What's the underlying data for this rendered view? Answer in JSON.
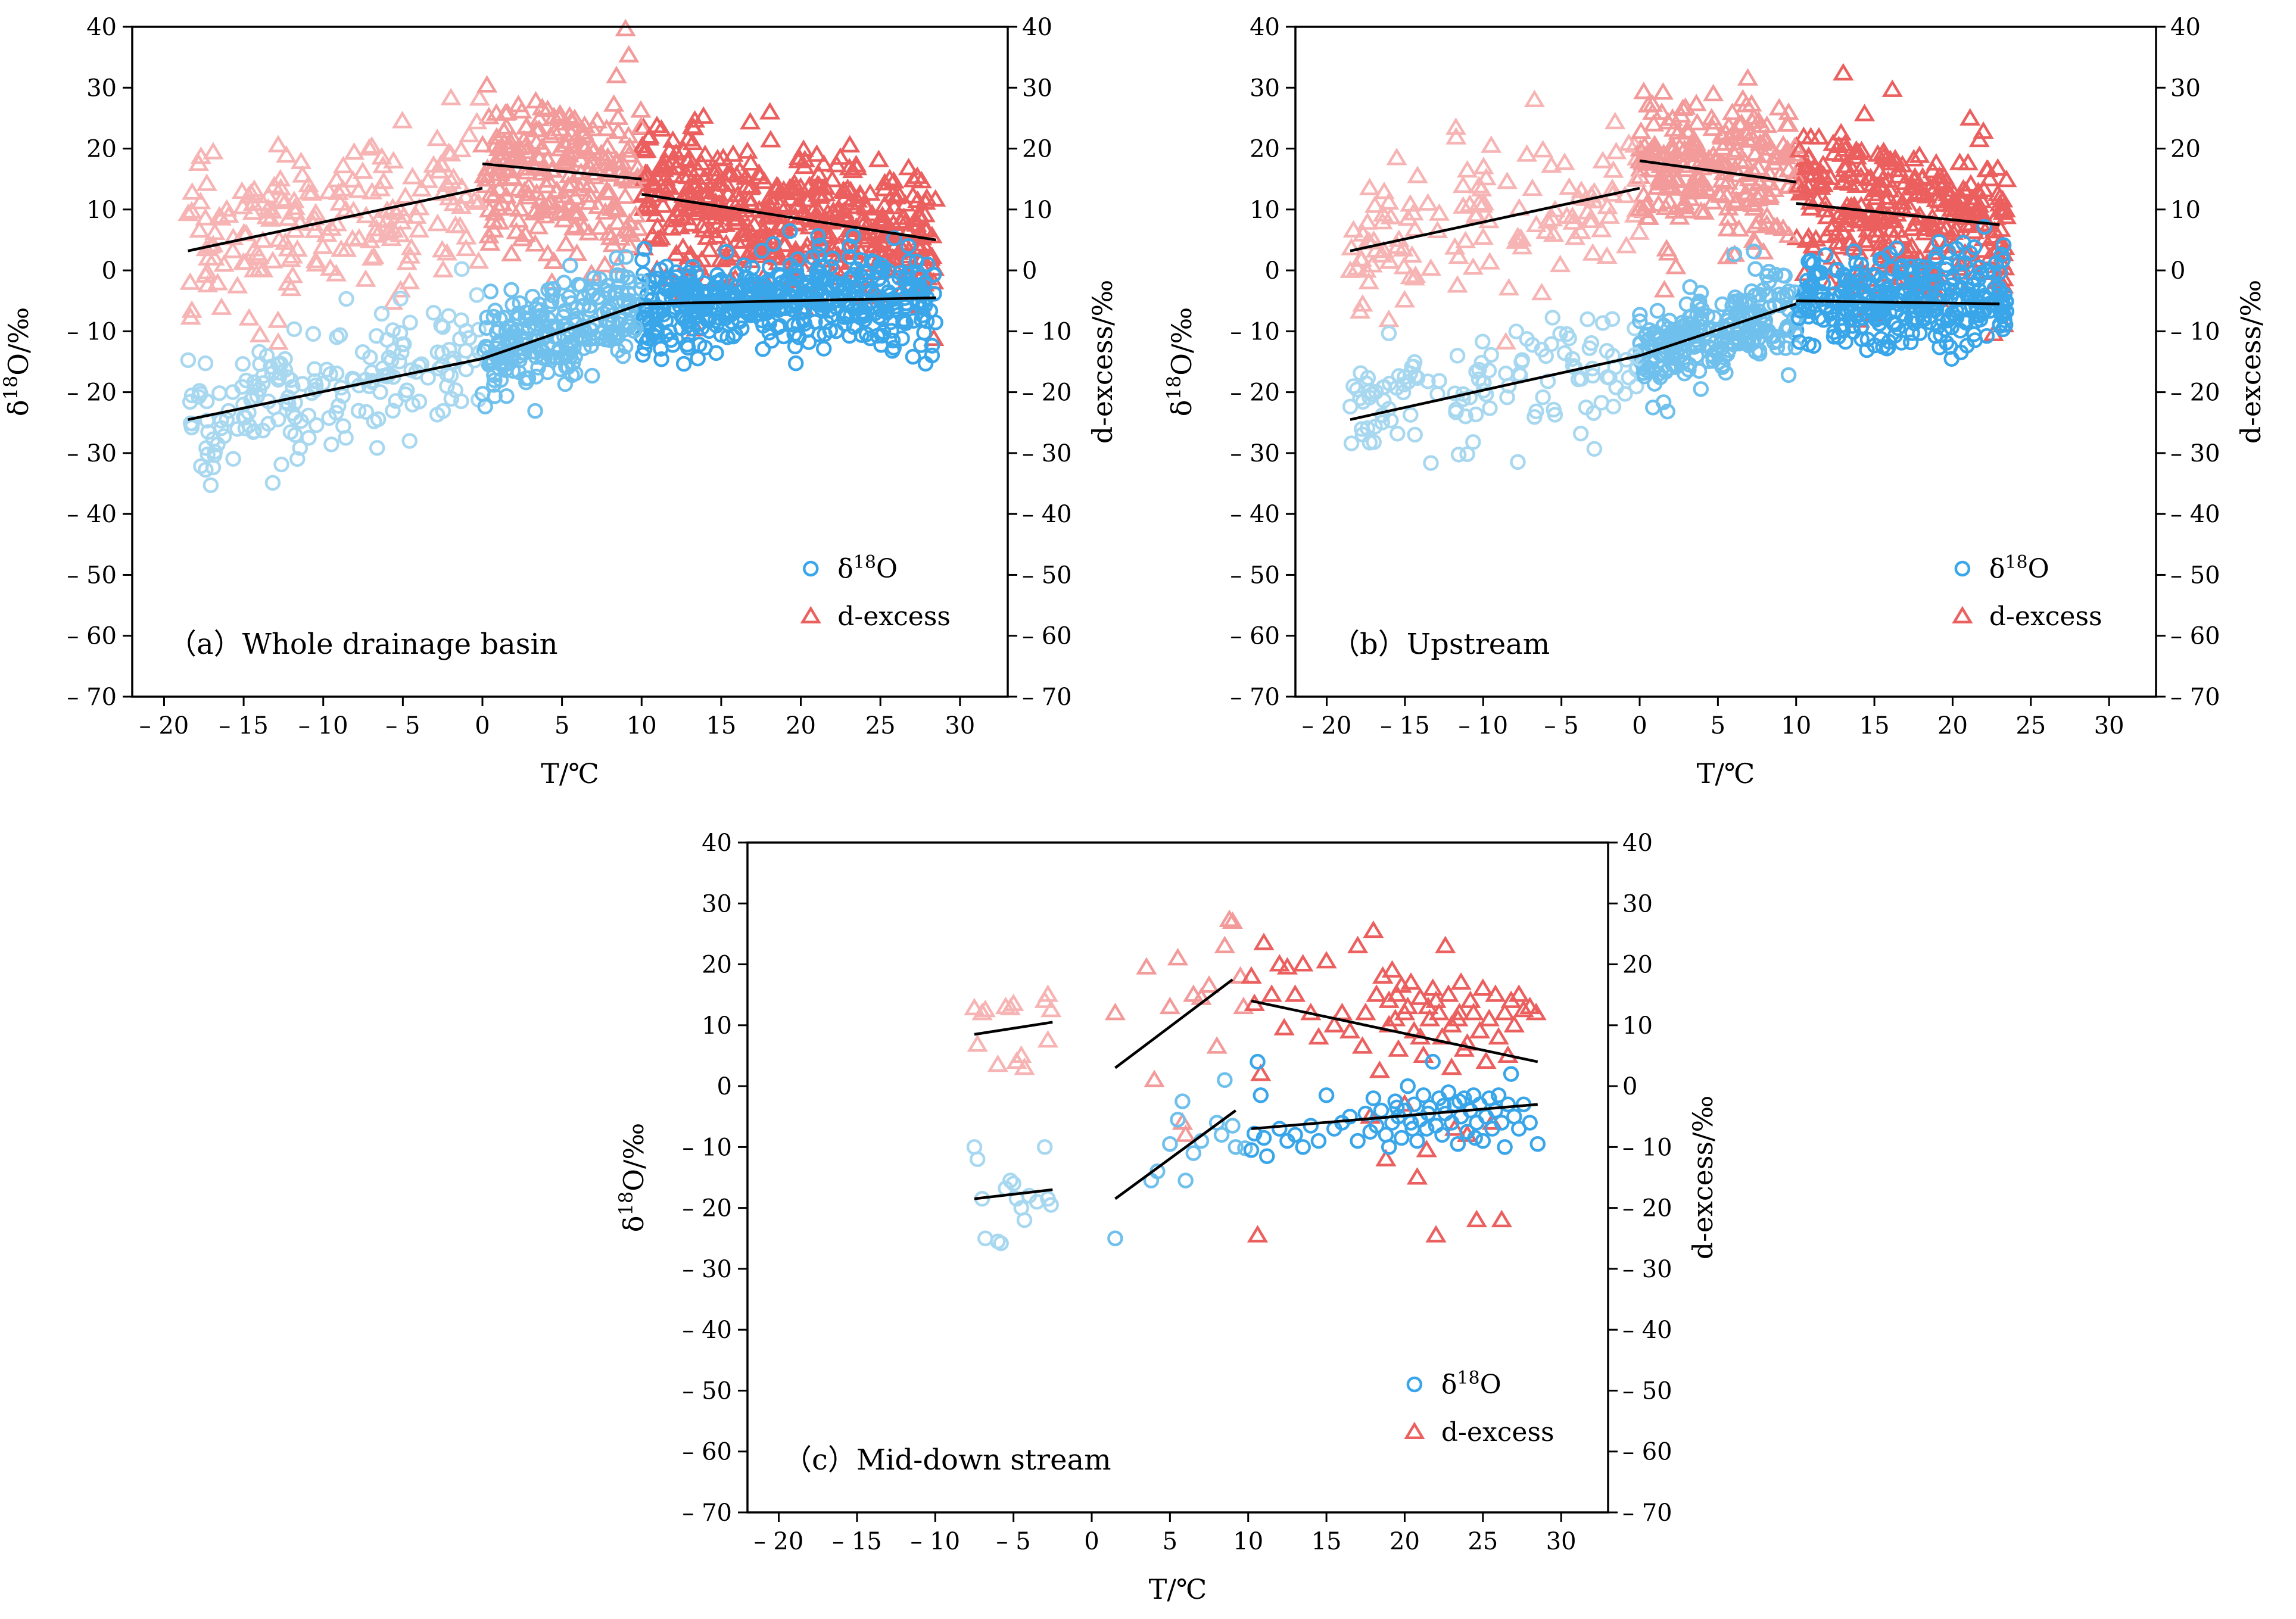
{
  "colors": {
    "d18o_cold": "#a8d8f0",
    "d18o_mid": "#6fc0ec",
    "d18o_warm": "#3aa6ea",
    "dex_cold": "#f7b4b4",
    "dex_mid": "#f39a9a",
    "dex_warm": "#ec5f5f",
    "fit": "#000000",
    "axis": "#000000"
  },
  "chart_data": [
    {
      "type": "scatter",
      "panel_label": "（a）Whole drainage basin",
      "xlabel": "T/℃",
      "ylabel": "δ18O/‰",
      "y2label": "d-excess/‰",
      "xlim": [
        -22,
        33
      ],
      "ylim": [
        -70,
        40
      ],
      "y2lim": [
        -70,
        40
      ],
      "xticks": [
        -20,
        -15,
        -10,
        -5,
        0,
        5,
        10,
        15,
        20,
        25,
        30
      ],
      "xtick_labels": [
        "– 20",
        "– 15",
        "– 10",
        "– 5",
        "0",
        "5",
        "10",
        "15",
        "20",
        "25",
        "30"
      ],
      "yticks": [
        -70,
        -60,
        -50,
        -40,
        -30,
        -20,
        -10,
        0,
        10,
        20,
        30,
        40
      ],
      "ytick_labels": [
        "– 70",
        "– 60",
        "– 50",
        "– 40",
        "– 30",
        "– 20",
        "– 10",
        "0",
        "10",
        "20",
        "30",
        "40"
      ],
      "legend": [
        "δ18O",
        "d-excess"
      ],
      "legend_position": "bottom-right",
      "generator": {
        "seed": 11,
        "n": 900,
        "x_min": -18.5,
        "x_max": 28.5
      },
      "fits": {
        "d18o": [
          {
            "x": [
              -18.5,
              0
            ],
            "y": [
              -24.5,
              -14.5
            ]
          },
          {
            "x": [
              0,
              10
            ],
            "y": [
              -14.5,
              -5.5
            ]
          },
          {
            "x": [
              10,
              28.5
            ],
            "y": [
              -5.5,
              -4.5
            ]
          }
        ],
        "dex": [
          {
            "x": [
              -18.5,
              0
            ],
            "y": [
              3.2,
              13.5
            ]
          },
          {
            "x": [
              0,
              10
            ],
            "y": [
              17.5,
              15
            ]
          },
          {
            "x": [
              10,
              28.5
            ],
            "y": [
              12.5,
              5
            ]
          }
        ]
      }
    },
    {
      "type": "scatter",
      "panel_label": "（b）Upstream",
      "xlabel": "T/℃",
      "ylabel": "δ18O/‰",
      "y2label": "d-excess/‰",
      "xlim": [
        -22,
        33
      ],
      "ylim": [
        -70,
        40
      ],
      "y2lim": [
        -70,
        40
      ],
      "xticks": [
        -20,
        -15,
        -10,
        -5,
        0,
        5,
        10,
        15,
        20,
        25,
        30
      ],
      "xtick_labels": [
        "– 20",
        "– 15",
        "– 10",
        "– 5",
        "0",
        "5",
        "10",
        "15",
        "20",
        "25",
        "30"
      ],
      "yticks": [
        -70,
        -60,
        -50,
        -40,
        -30,
        -20,
        -10,
        0,
        10,
        20,
        30,
        40
      ],
      "ytick_labels": [
        "– 70",
        "– 60",
        "– 50",
        "– 40",
        "– 30",
        "– 20",
        "– 10",
        "0",
        "10",
        "20",
        "30",
        "40"
      ],
      "legend": [
        "δ18O",
        "d-excess"
      ],
      "legend_position": "bottom-right",
      "generator": {
        "seed": 23,
        "n": 700,
        "x_min": -18.5,
        "x_max": 23.5
      },
      "fits": {
        "d18o": [
          {
            "x": [
              -18.5,
              0
            ],
            "y": [
              -24.5,
              -14
            ]
          },
          {
            "x": [
              0,
              10
            ],
            "y": [
              -14,
              -5.5
            ]
          },
          {
            "x": [
              10,
              23
            ],
            "y": [
              -5,
              -5.5
            ]
          }
        ],
        "dex": [
          {
            "x": [
              -18.5,
              0
            ],
            "y": [
              3.2,
              13.5
            ]
          },
          {
            "x": [
              0,
              10
            ],
            "y": [
              18,
              14.5
            ]
          },
          {
            "x": [
              10,
              23
            ],
            "y": [
              11,
              7.5
            ]
          }
        ]
      }
    },
    {
      "type": "scatter",
      "panel_label": "（c）Mid-down stream",
      "xlabel": "T/℃",
      "ylabel": "δ18O/‰",
      "y2label": "d-excess/‰",
      "xlim": [
        -22,
        33
      ],
      "ylim": [
        -70,
        40
      ],
      "y2lim": [
        -70,
        40
      ],
      "xticks": [
        -20,
        -15,
        -10,
        -5,
        0,
        5,
        10,
        15,
        20,
        25,
        30
      ],
      "xtick_labels": [
        "– 20",
        "– 15",
        "– 10",
        "– 5",
        "0",
        "5",
        "10",
        "15",
        "20",
        "25",
        "30"
      ],
      "yticks": [
        -70,
        -60,
        -50,
        -40,
        -30,
        -20,
        -10,
        0,
        10,
        20,
        30,
        40
      ],
      "ytick_labels": [
        "– 70",
        "– 60",
        "– 50",
        "– 40",
        "– 30",
        "– 20",
        "– 10",
        "0",
        "10",
        "20",
        "30",
        "40"
      ],
      "legend": [
        "δ18O",
        "d-excess"
      ],
      "legend_position": "bottom-right",
      "points": {
        "d18o": [
          [
            -7.5,
            -10
          ],
          [
            -7.3,
            -12
          ],
          [
            -7,
            -18.5
          ],
          [
            -6.8,
            -25
          ],
          [
            -6,
            -25.5
          ],
          [
            -5.8,
            -25.8
          ],
          [
            -5.5,
            -16.8
          ],
          [
            -5.2,
            -15.5
          ],
          [
            -5,
            -16
          ],
          [
            -4.8,
            -18.5
          ],
          [
            -4.5,
            -20
          ],
          [
            -4.3,
            -22
          ],
          [
            -4,
            -18
          ],
          [
            -3.5,
            -19
          ],
          [
            -3,
            -10
          ],
          [
            -2.8,
            -18.5
          ],
          [
            -2.6,
            -19.5
          ],
          [
            1.5,
            -25
          ],
          [
            3.8,
            -15.5
          ],
          [
            4.2,
            -14
          ],
          [
            5,
            -9.5
          ],
          [
            5.5,
            -5.5
          ],
          [
            5.8,
            -2.5
          ],
          [
            6,
            -15.5
          ],
          [
            6.5,
            -11
          ],
          [
            7,
            -9
          ],
          [
            8,
            -6
          ],
          [
            8.3,
            -8
          ],
          [
            8.5,
            1
          ],
          [
            9,
            -6.5
          ],
          [
            9.2,
            -10
          ],
          [
            9.8,
            -10.2
          ],
          [
            10.2,
            -10.5
          ],
          [
            10.4,
            -7.8
          ],
          [
            10.6,
            4
          ],
          [
            10.8,
            -1.5
          ],
          [
            11,
            -8.5
          ],
          [
            11.2,
            -11.5
          ],
          [
            12,
            -7
          ],
          [
            12.5,
            -9
          ],
          [
            13,
            -8
          ],
          [
            13.5,
            -10
          ],
          [
            14,
            -6.5
          ],
          [
            14.5,
            -9
          ],
          [
            15,
            -1.5
          ],
          [
            15.5,
            -7
          ],
          [
            16,
            -6
          ],
          [
            16.5,
            -5
          ],
          [
            17,
            -9
          ],
          [
            17.5,
            -4.5
          ],
          [
            17.8,
            -7.5
          ],
          [
            18,
            -2
          ],
          [
            18.2,
            -6.5
          ],
          [
            18.5,
            -4
          ],
          [
            18.8,
            -8
          ],
          [
            19,
            -10
          ],
          [
            19.2,
            -6
          ],
          [
            19.4,
            -2.5
          ],
          [
            19.6,
            -5
          ],
          [
            19.8,
            -8.5
          ],
          [
            20,
            -4
          ],
          [
            20.2,
            0
          ],
          [
            20.4,
            -6
          ],
          [
            20.6,
            -3
          ],
          [
            20.8,
            -9
          ],
          [
            21,
            -5.5
          ],
          [
            21.2,
            -1.5
          ],
          [
            21.4,
            -7
          ],
          [
            21.6,
            -3.5
          ],
          [
            21.8,
            4
          ],
          [
            22,
            -6.5
          ],
          [
            22.2,
            -2
          ],
          [
            22.4,
            -8
          ],
          [
            22.6,
            -4.5
          ],
          [
            22.8,
            -1
          ],
          [
            23,
            -6
          ],
          [
            23.2,
            -3
          ],
          [
            23.4,
            -9.5
          ],
          [
            23.6,
            -5
          ],
          [
            23.8,
            -2
          ],
          [
            24,
            -7.5
          ],
          [
            24.2,
            -4
          ],
          [
            24.4,
            -1.5
          ],
          [
            24.6,
            -6
          ],
          [
            24.8,
            -3
          ],
          [
            25,
            -9
          ],
          [
            25.2,
            -5
          ],
          [
            25.4,
            -2
          ],
          [
            25.6,
            -7
          ],
          [
            25.8,
            -4
          ],
          [
            26,
            -1.5
          ],
          [
            26.2,
            -6
          ],
          [
            26.4,
            -10
          ],
          [
            26.6,
            -3
          ],
          [
            26.8,
            2
          ],
          [
            27,
            -5
          ],
          [
            27.3,
            -7
          ],
          [
            27.6,
            -3
          ],
          [
            28,
            -6
          ],
          [
            28.5,
            -9.5
          ],
          [
            19.5,
            -3.5
          ],
          [
            21.5,
            -4.5
          ],
          [
            23.5,
            -2.5
          ],
          [
            20.5,
            -7
          ],
          [
            24.5,
            -8.5
          ],
          [
            22.5,
            -3.2
          ]
        ],
        "dex": [
          [
            -7.5,
            12.8
          ],
          [
            -7.3,
            6.8
          ],
          [
            -7,
            12
          ],
          [
            -6.8,
            12.5
          ],
          [
            -6,
            3.5
          ],
          [
            -5.5,
            13
          ],
          [
            -5,
            13.5
          ],
          [
            -5.2,
            12.8
          ],
          [
            -4.8,
            4
          ],
          [
            -4.5,
            5
          ],
          [
            -4.3,
            3
          ],
          [
            -3,
            14
          ],
          [
            -2.8,
            15
          ],
          [
            -2.6,
            12.5
          ],
          [
            -2.8,
            7.5
          ],
          [
            1.5,
            12
          ],
          [
            3.5,
            19.5
          ],
          [
            4,
            1
          ],
          [
            5,
            13
          ],
          [
            5.5,
            21
          ],
          [
            5.8,
            -6
          ],
          [
            6,
            -8
          ],
          [
            6.5,
            15
          ],
          [
            7,
            14.5
          ],
          [
            7.5,
            16.5
          ],
          [
            8,
            6.5
          ],
          [
            8.5,
            23
          ],
          [
            8.8,
            27.3
          ],
          [
            9,
            27
          ],
          [
            9.5,
            18
          ],
          [
            9.7,
            13
          ],
          [
            10.2,
            18
          ],
          [
            10.4,
            13.5
          ],
          [
            10.6,
            -24.5
          ],
          [
            10.8,
            2
          ],
          [
            11,
            23.5
          ],
          [
            11.5,
            15
          ],
          [
            12,
            20
          ],
          [
            12.3,
            9.5
          ],
          [
            12.5,
            19.5
          ],
          [
            13,
            15
          ],
          [
            13.5,
            20
          ],
          [
            14,
            12
          ],
          [
            14.5,
            8
          ],
          [
            15,
            20.5
          ],
          [
            15.5,
            10
          ],
          [
            16,
            12
          ],
          [
            16.5,
            9
          ],
          [
            17,
            23
          ],
          [
            17.3,
            6.5
          ],
          [
            17.5,
            12
          ],
          [
            17.8,
            -5
          ],
          [
            18,
            25.5
          ],
          [
            18.2,
            15
          ],
          [
            18.4,
            2.5
          ],
          [
            18.6,
            18
          ],
          [
            18.8,
            -12
          ],
          [
            19,
            14
          ],
          [
            19.2,
            19
          ],
          [
            19.4,
            11
          ],
          [
            19.6,
            6
          ],
          [
            19.8,
            16.5
          ],
          [
            20,
            -3
          ],
          [
            20.2,
            13
          ],
          [
            20.4,
            17
          ],
          [
            20.6,
            9
          ],
          [
            20.8,
            -15
          ],
          [
            21,
            14.5
          ],
          [
            21.2,
            5
          ],
          [
            21.4,
            -10.5
          ],
          [
            21.6,
            11
          ],
          [
            21.8,
            16
          ],
          [
            22,
            -24.5
          ],
          [
            22.2,
            12
          ],
          [
            22.4,
            8
          ],
          [
            22.6,
            23
          ],
          [
            22.8,
            15
          ],
          [
            23,
            3
          ],
          [
            23.2,
            -7
          ],
          [
            23.4,
            11
          ],
          [
            23.6,
            17
          ],
          [
            23.8,
            6
          ],
          [
            24,
            -8
          ],
          [
            24.2,
            14
          ],
          [
            24.4,
            12
          ],
          [
            24.6,
            -22
          ],
          [
            24.8,
            9
          ],
          [
            25,
            16
          ],
          [
            25.2,
            4
          ],
          [
            25.4,
            11
          ],
          [
            25.6,
            -6
          ],
          [
            25.8,
            15
          ],
          [
            26,
            8
          ],
          [
            26.2,
            -22
          ],
          [
            26.4,
            12
          ],
          [
            26.6,
            5
          ],
          [
            26.8,
            14
          ],
          [
            27,
            10
          ],
          [
            27.3,
            15
          ],
          [
            27.6,
            12.5
          ],
          [
            28,
            13
          ],
          [
            28.4,
            12
          ],
          [
            19,
            10
          ],
          [
            20,
            12
          ],
          [
            21,
            8
          ],
          [
            22,
            14
          ],
          [
            23,
            10
          ],
          [
            24,
            7
          ],
          [
            19.5,
            15
          ],
          [
            21.5,
            13
          ],
          [
            23.5,
            12
          ]
        ]
      },
      "fits": {
        "d18o": [
          {
            "x": [
              -7.5,
              -2.5
            ],
            "y": [
              -18.5,
              -17
            ]
          },
          {
            "x": [
              1.5,
              9.2
            ],
            "y": [
              -18.5,
              -4
            ]
          },
          {
            "x": [
              10.2,
              28.5
            ],
            "y": [
              -7,
              -3
            ]
          }
        ],
        "dex": [
          {
            "x": [
              -7.5,
              -2.5
            ],
            "y": [
              8.5,
              10.5
            ]
          },
          {
            "x": [
              1.5,
              9
            ],
            "y": [
              3,
              17.5
            ]
          },
          {
            "x": [
              10.2,
              28.5
            ],
            "y": [
              14,
              4
            ]
          }
        ]
      }
    }
  ]
}
